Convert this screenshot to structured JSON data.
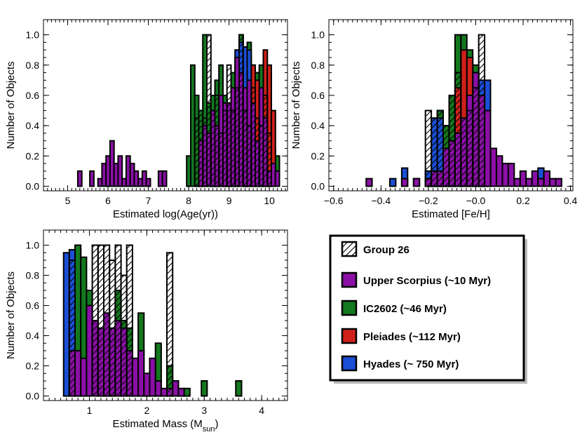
{
  "colors": {
    "group26": "#ffffff",
    "upper_scorpius": "#8a10a6",
    "ic2602": "#14781e",
    "pleiades": "#d0201a",
    "hyades": "#1a4fd6"
  },
  "legend": {
    "items": [
      {
        "key": "group26",
        "label": "Group 26",
        "hatched": true
      },
      {
        "key": "upper_scorpius",
        "label": "Upper Scorpius (~10 Myr)",
        "hatched": false
      },
      {
        "key": "ic2602",
        "label": "IC2602 (~46 Myr)",
        "hatched": false
      },
      {
        "key": "pleiades",
        "label": "Pleiades (~112 Myr)",
        "hatched": false
      },
      {
        "key": "hyades",
        "label": "Hyades (~ 750 Myr)",
        "hatched": false
      }
    ]
  },
  "chart_data": [
    {
      "id": "age",
      "type": "bar",
      "title": "",
      "xlabel": "Estimated log(Age(yr))",
      "ylabel": "Number of Objects",
      "xlim": [
        4.4,
        10.45
      ],
      "ylim": [
        -0.03,
        1.1
      ],
      "xticks": [
        "5",
        "6",
        "7",
        "8",
        "9",
        "10"
      ],
      "yticks": [
        "0.0",
        "0.2",
        "0.4",
        "0.6",
        "0.8",
        "1.0"
      ],
      "bin_width": 0.1,
      "series": [
        {
          "name": "IC2602 (~46 Myr)",
          "key": "ic2602",
          "hatched": false,
          "x": [
            8.0,
            8.1,
            8.2,
            8.3,
            8.4,
            8.5,
            8.6,
            8.7,
            8.8,
            8.9,
            9.0,
            9.1,
            9.2,
            9.3,
            9.4,
            9.5,
            9.6,
            9.7,
            9.8,
            9.9,
            10.0,
            10.1,
            10.2
          ],
          "values": [
            0.2,
            0.8,
            0.6,
            0.5,
            1.0,
            0.55,
            0.6,
            0.7,
            0.8,
            0.6,
            0.55,
            0.75,
            0.6,
            1.0,
            0.65,
            0.95,
            0.8,
            0.75,
            0.8,
            0.5,
            0.45,
            0.25,
            0.2
          ]
        },
        {
          "name": "Pleiades (~112 Myr)",
          "key": "pleiades",
          "hatched": false,
          "x": [
            9.2,
            9.3,
            9.5,
            9.6,
            9.7,
            9.9,
            10.0,
            10.1
          ],
          "values": [
            0.85,
            0.8,
            0.85,
            0.8,
            0.7,
            0.9,
            0.8,
            0.5
          ]
        },
        {
          "name": "Hyades (~ 750 Myr)",
          "key": "hyades",
          "hatched": false,
          "x": [
            9.2,
            9.3,
            9.4,
            9.5
          ],
          "values": [
            0.9,
            0.95,
            0.92,
            0.9
          ]
        },
        {
          "name": "Upper Scorpius (~10 Myr)",
          "key": "upper_scorpius",
          "hatched": false,
          "x": [
            5.3,
            5.6,
            5.8,
            5.9,
            6.0,
            6.1,
            6.2,
            6.3,
            6.4,
            6.5,
            6.6,
            6.7,
            6.8,
            6.9,
            7.0,
            7.3,
            7.4,
            8.3,
            8.4,
            8.5,
            8.6,
            8.7,
            8.8,
            8.9,
            9.0,
            9.1,
            9.2,
            9.3,
            9.4,
            9.5,
            9.6,
            9.7,
            9.8,
            9.9,
            10.0,
            10.1,
            10.2
          ],
          "values": [
            0.1,
            0.1,
            0.05,
            0.15,
            0.2,
            0.3,
            0.15,
            0.2,
            0.05,
            0.2,
            0.15,
            0.1,
            0.05,
            0.1,
            0.05,
            0.1,
            0.1,
            0.3,
            0.4,
            0.35,
            0.5,
            0.4,
            0.6,
            0.55,
            0.55,
            0.65,
            0.85,
            0.75,
            0.65,
            0.7,
            0.55,
            0.3,
            0.65,
            0.45,
            0.1,
            0.15,
            0.1
          ]
        },
        {
          "name": "Group 26",
          "key": "group26",
          "hatched": true,
          "x": [
            8.2,
            8.3,
            8.4,
            8.5,
            8.6,
            8.7,
            8.8,
            8.9,
            9.0,
            9.1,
            9.2,
            9.3,
            9.4,
            9.5,
            9.6,
            9.7,
            9.8,
            9.9,
            10.0
          ],
          "values": [
            0.45,
            0.5,
            0.45,
            1.0,
            0.5,
            0.6,
            0.35,
            0.5,
            0.8,
            0.5,
            0.65,
            1.0,
            0.5,
            0.4,
            0.65,
            0.45,
            0.4,
            0.6,
            0.35
          ]
        }
      ]
    },
    {
      "id": "feh",
      "type": "bar",
      "title": "",
      "xlabel": "Estimated [Fe/H]",
      "ylabel": "Number of Objects",
      "xlim": [
        -0.62,
        0.41
      ],
      "ylim": [
        -0.03,
        1.1
      ],
      "xticks": [
        "−0.6",
        "−0.4",
        "−0.2",
        "−0.0",
        "0.2",
        "0.4"
      ],
      "xtick_values": [
        -0.6,
        -0.4,
        -0.2,
        0.0,
        0.2,
        0.4
      ],
      "yticks": [
        "0.0",
        "0.2",
        "0.4",
        "0.6",
        "0.8",
        "1.0"
      ],
      "bin_width": 0.025,
      "series": [
        {
          "name": "IC2602 (~46 Myr)",
          "key": "ic2602",
          "hatched": false,
          "x": [
            -0.2,
            -0.175,
            -0.15,
            -0.125,
            -0.1,
            -0.075,
            -0.05,
            -0.025,
            0.0,
            0.025
          ],
          "values": [
            0.1,
            0.45,
            0.5,
            0.4,
            0.6,
            1.0,
            1.0,
            0.9,
            0.8,
            0.5
          ]
        },
        {
          "name": "Pleiades (~112 Myr)",
          "key": "pleiades",
          "hatched": false,
          "x": [
            -0.075,
            -0.05,
            -0.025,
            0.15
          ],
          "values": [
            0.65,
            0.9,
            0.85,
            0.05
          ]
        },
        {
          "name": "Hyades (~ 750 Myr)",
          "key": "hyades",
          "hatched": false,
          "x": [
            -0.35,
            -0.3,
            -0.25,
            -0.2,
            -0.175,
            -0.15,
            0.025,
            0.05,
            0.125,
            0.275
          ],
          "values": [
            0.05,
            0.12,
            0.05,
            0.1,
            0.45,
            0.45,
            0.7,
            0.7,
            0.15,
            0.12
          ]
        },
        {
          "name": "Upper Scorpius (~10 Myr)",
          "key": "upper_scorpius",
          "hatched": false,
          "x": [
            -0.45,
            -0.3,
            -0.25,
            -0.2,
            -0.175,
            -0.15,
            -0.125,
            -0.1,
            -0.075,
            -0.05,
            -0.025,
            0.0,
            0.025,
            0.05,
            0.075,
            0.1,
            0.125,
            0.15,
            0.175,
            0.2,
            0.225,
            0.25,
            0.275,
            0.3,
            0.325,
            0.35
          ],
          "values": [
            0.05,
            0.05,
            0.05,
            0.05,
            0.1,
            0.1,
            0.25,
            0.3,
            0.35,
            0.45,
            0.6,
            0.75,
            0.6,
            0.5,
            0.25,
            0.2,
            0.15,
            0.15,
            0.05,
            0.1,
            0.05,
            0.1,
            0.05,
            0.1,
            0.05,
            0.05
          ]
        },
        {
          "name": "Group 26",
          "key": "group26",
          "hatched": true,
          "x": [
            -0.2,
            -0.175,
            -0.15,
            -0.125,
            -0.1,
            -0.075,
            -0.05,
            -0.025,
            0.0,
            0.025
          ],
          "values": [
            0.5,
            0.45,
            0.5,
            0.4,
            0.6,
            0.75,
            0.45,
            0.5,
            0.65,
            1.0
          ]
        }
      ]
    },
    {
      "id": "mass",
      "type": "bar",
      "title": "",
      "xlabel": "Estimated Mass (M",
      "xlabel_sub": "sun",
      "xlabel_end": ")",
      "ylabel": "Number of Objects",
      "xlim": [
        0.2,
        4.45
      ],
      "ylim": [
        -0.03,
        1.1
      ],
      "xticks": [
        "1",
        "2",
        "3",
        "4"
      ],
      "yticks": [
        "0.0",
        "0.2",
        "0.4",
        "0.6",
        "0.8",
        "1.0"
      ],
      "bin_width": 0.1,
      "series": [
        {
          "name": "Hyades (~ 750 Myr)",
          "key": "hyades",
          "hatched": false,
          "x": [
            0.6,
            0.7
          ],
          "values": [
            0.95,
            0.97
          ]
        },
        {
          "name": "Pleiades (~112 Myr)",
          "key": "pleiades",
          "hatched": false,
          "x": [
            0.8
          ],
          "values": [
            0.97
          ]
        },
        {
          "name": "IC2602 (~46 Myr)",
          "key": "ic2602",
          "hatched": false,
          "x": [
            0.8,
            0.9,
            1.0,
            1.5,
            1.6,
            1.7,
            1.9,
            2.2,
            2.4,
            2.5,
            2.7,
            3.0,
            3.6
          ],
          "values": [
            1.0,
            0.92,
            0.7,
            0.7,
            0.5,
            0.45,
            0.55,
            0.35,
            0.2,
            0.1,
            0.05,
            0.1,
            0.1
          ]
        },
        {
          "name": "Upper Scorpius (~10 Myr)",
          "key": "upper_scorpius",
          "hatched": false,
          "x": [
            0.7,
            0.8,
            0.9,
            1.0,
            1.1,
            1.2,
            1.3,
            1.4,
            1.5,
            1.6,
            1.7,
            1.8,
            1.9,
            2.0,
            2.1,
            2.2,
            2.3,
            2.4,
            2.5,
            2.6
          ],
          "values": [
            0.3,
            0.3,
            0.25,
            0.6,
            0.5,
            0.45,
            0.55,
            0.45,
            0.5,
            0.45,
            0.3,
            0.25,
            0.3,
            0.15,
            0.25,
            0.1,
            0.05,
            0.05,
            0.1,
            0.05
          ]
        },
        {
          "name": "Group 26",
          "key": "group26",
          "hatched": true,
          "x": [
            0.7,
            1.1,
            1.2,
            1.3,
            1.4,
            1.5,
            1.6,
            1.7,
            2.4
          ],
          "values": [
            0.9,
            1.0,
            1.0,
            1.0,
            0.9,
            1.0,
            0.8,
            1.0,
            0.95
          ]
        }
      ]
    }
  ]
}
